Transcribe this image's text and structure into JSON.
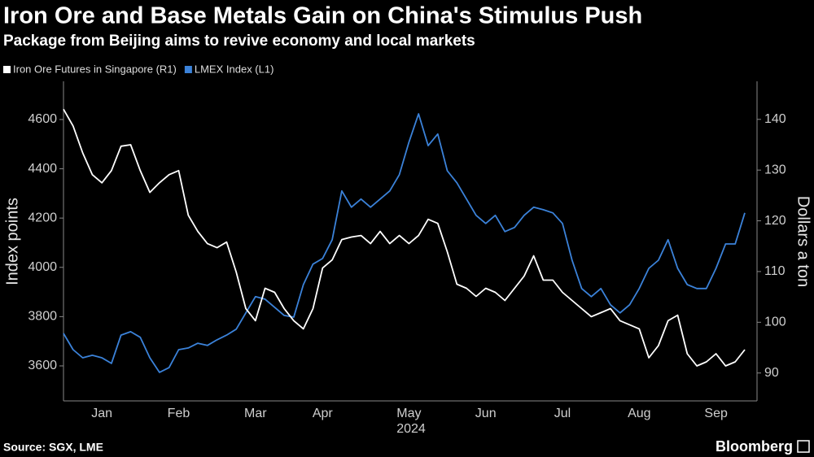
{
  "chart_data": {
    "type": "line",
    "title": "Iron Ore and Base Metals Gain on China's Stimulus Push",
    "subtitle": "Package from Beijing aims to revive economy and local markets",
    "y_label": "Index points",
    "y2_label": "Dollars a ton",
    "year_label": "2024",
    "source": "Source: SGX, LME",
    "brand": "Bloomberg",
    "categories": [
      null,
      null,
      null,
      null,
      "Jan",
      null,
      null,
      null,
      null,
      null,
      null,
      null,
      "Feb",
      null,
      null,
      null,
      null,
      null,
      null,
      null,
      "Mar",
      null,
      null,
      null,
      null,
      null,
      null,
      "Apr",
      null,
      null,
      null,
      null,
      null,
      null,
      null,
      null,
      "May",
      null,
      null,
      null,
      null,
      null,
      null,
      null,
      "Jun",
      null,
      null,
      null,
      null,
      null,
      null,
      null,
      "Jul",
      null,
      null,
      null,
      null,
      null,
      null,
      null,
      "Aug",
      null,
      null,
      null,
      null,
      null,
      null,
      null,
      "Sep",
      null,
      null,
      null
    ],
    "series": [
      {
        "name": "Iron Ore Futures in Singapore (R1)",
        "color": "#ffffff",
        "axis": "y2",
        "values": [
          142,
          138.7,
          133.4,
          129.1,
          127.5,
          129.9,
          134.7,
          135,
          129.9,
          125.6,
          127.5,
          129.1,
          129.9,
          121.1,
          117.9,
          115.5,
          114.7,
          115.8,
          109.9,
          102.7,
          100.3,
          106.7,
          105.9,
          102.7,
          100.3,
          98.7,
          102.7,
          110.7,
          112.3,
          116.3,
          116.8,
          117.1,
          115.5,
          117.9,
          115.5,
          117.1,
          115.5,
          117.1,
          120.3,
          119.5,
          113.9,
          107.5,
          106.7,
          105.1,
          106.7,
          105.9,
          104.3,
          106.7,
          109.1,
          113.1,
          108.3,
          108.3,
          105.9,
          104.3,
          102.7,
          101.1,
          101.9,
          102.7,
          100.3,
          99.5,
          98.7,
          93,
          95.4,
          100.3,
          101.4,
          93.8,
          91.4,
          92.2,
          93.8,
          91.4,
          92.2,
          94.6
        ]
      },
      {
        "name": "LMEX Index (L1)",
        "color": "#3b82d9",
        "axis": "y",
        "values": [
          3732,
          3666,
          3633,
          3643,
          3633,
          3610,
          3725,
          3739,
          3716,
          3633,
          3574,
          3593,
          3666,
          3673,
          3692,
          3683,
          3706,
          3725,
          3749,
          3815,
          3881,
          3871,
          3838,
          3805,
          3798,
          3930,
          4013,
          4036,
          4112,
          4310,
          4244,
          4277,
          4244,
          4277,
          4310,
          4376,
          4508,
          4623,
          4494,
          4541,
          4392,
          4343,
          4277,
          4211,
          4178,
          4211,
          4145,
          4162,
          4211,
          4244,
          4234,
          4221,
          4178,
          4029,
          3914,
          3881,
          3914,
          3848,
          3815,
          3848,
          3914,
          3996,
          4029,
          4112,
          3996,
          3930,
          3914,
          3914,
          3996,
          4095,
          4095,
          4221
        ]
      }
    ],
    "ylim": [
      3458,
      4755
    ],
    "yticks": [
      3600,
      3800,
      4000,
      4200,
      4400,
      4600
    ],
    "y2lim": [
      84.5,
      147.5
    ],
    "y2ticks": [
      90,
      100,
      110,
      120,
      130,
      140
    ],
    "grid": false
  }
}
